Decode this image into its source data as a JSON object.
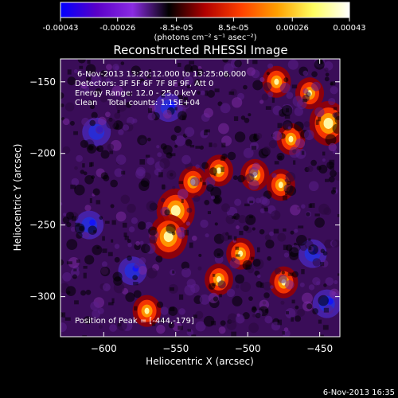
{
  "colorbar": {
    "tick_labels": [
      "-0.00043",
      "-0.00026",
      "-8.5e-05",
      "8.5e-05",
      "0.00026",
      "0.00043"
    ],
    "units_label": "(photons cm⁻² s⁻¹ asec⁻²)",
    "range": [
      -0.00043,
      0.00043
    ],
    "colors": [
      "#0000ff",
      "#5a00c8",
      "#8a2be2",
      "#000000",
      "#b00000",
      "#ff4000",
      "#ffa000",
      "#ffff60",
      "#ffffff"
    ]
  },
  "chart_data": {
    "type": "heatmap",
    "title": "Reconstructed RHESSI Image",
    "xlabel": "Heliocentric X (arcsec)",
    "ylabel": "Heliocentric Y (arcsec)",
    "xlim": [
      -630,
      -436
    ],
    "ylim": [
      -328,
      -134
    ],
    "x_ticks": [
      -600,
      -550,
      -500,
      -450
    ],
    "y_ticks": [
      -150,
      -200,
      -250,
      -300
    ],
    "x_tick_labels": [
      "−600",
      "−550",
      "−500",
      "−450"
    ],
    "y_tick_labels": [
      "−150",
      "−200",
      "−250",
      "−300"
    ],
    "annotations": [
      "6-Nov-2013 13:20:12.000 to 13:25:06.000",
      "Detectors: 3F 5F 6F 7F 8F 9F, Att 0",
      "Energy Range: 12.0 - 25.0 keV",
      "Clean    Total counts: 1.15E+04",
      "Position of Peak = [-444,-179]"
    ],
    "peak": [
      -444,
      -179
    ],
    "bright_sources": [
      {
        "x": -550,
        "y": -240
      },
      {
        "x": -555,
        "y": -258
      },
      {
        "x": -538,
        "y": -220
      },
      {
        "x": -520,
        "y": -212
      },
      {
        "x": -495,
        "y": -215
      },
      {
        "x": -477,
        "y": -222
      },
      {
        "x": -470,
        "y": -190
      },
      {
        "x": -457,
        "y": -158
      },
      {
        "x": -444,
        "y": -179
      },
      {
        "x": -480,
        "y": -150
      },
      {
        "x": -505,
        "y": -270
      },
      {
        "x": -520,
        "y": -288
      },
      {
        "x": -475,
        "y": -290
      },
      {
        "x": -570,
        "y": -310
      }
    ],
    "dim_sources": [
      {
        "x": -605,
        "y": -185
      },
      {
        "x": -610,
        "y": -250
      },
      {
        "x": -555,
        "y": -168
      },
      {
        "x": -580,
        "y": -282
      },
      {
        "x": -455,
        "y": -270
      },
      {
        "x": -445,
        "y": -305
      }
    ]
  },
  "footer": {
    "timestamp": "6-Nov-2013 16:35"
  }
}
